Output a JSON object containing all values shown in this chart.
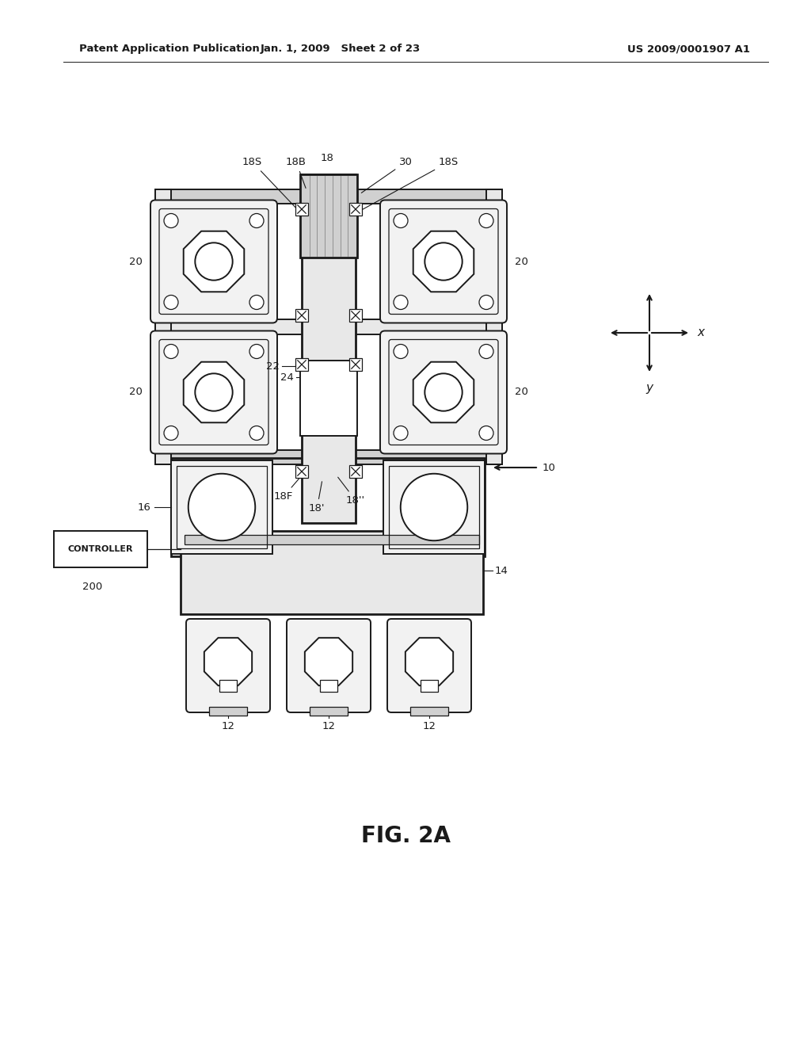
{
  "background_color": "#ffffff",
  "header_left": "Patent Application Publication",
  "header_mid": "Jan. 1, 2009   Sheet 2 of 23",
  "header_right": "US 2009/0001907 A1",
  "fig_label": "FIG. 2A",
  "dark": "#1a1a1a",
  "gray1": "#e8e8e8",
  "gray2": "#d0d0d0",
  "gray3": "#f2f2f2"
}
